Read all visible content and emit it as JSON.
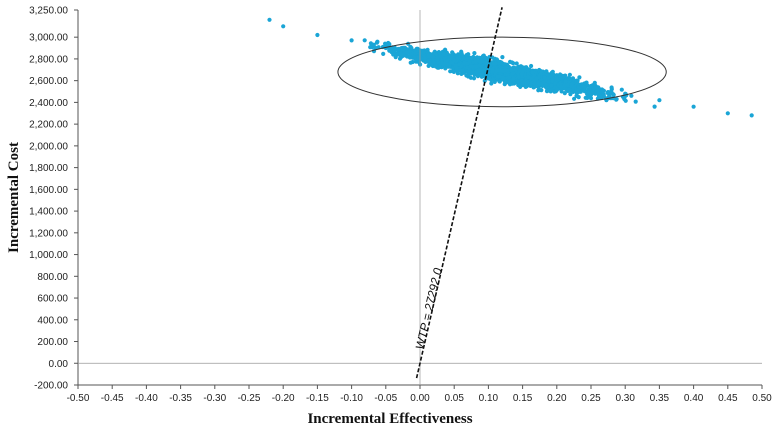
{
  "chart_data": {
    "type": "scatter",
    "xlabel": "Incremental Effectiveness",
    "ylabel": "Incremental Cost",
    "xlim": [
      -0.5,
      0.5
    ],
    "ylim": [
      -200,
      3250
    ],
    "x_ticks": [
      "-0.50",
      "-0.45",
      "-0.40",
      "-0.35",
      "-0.30",
      "-0.25",
      "-0.20",
      "-0.15",
      "-0.10",
      "-0.05",
      "0.00",
      "0.05",
      "0.10",
      "0.15",
      "0.20",
      "0.25",
      "0.30",
      "0.35",
      "0.40",
      "0.45",
      "0.50"
    ],
    "y_ticks": [
      "-200.00",
      "0.00",
      "200.00",
      "400.00",
      "600.00",
      "800.00",
      "1,000.00",
      "1,200.00",
      "1,400.00",
      "1,600.00",
      "1,800.00",
      "2,000.00",
      "2,200.00",
      "2,400.00",
      "2,600.00",
      "2,800.00",
      "3,000.00",
      "3,250.00"
    ],
    "y_tick_values": [
      -200,
      0,
      200,
      400,
      600,
      800,
      1000,
      1200,
      1400,
      1600,
      1800,
      2000,
      2200,
      2400,
      2600,
      2800,
      3000,
      3250
    ],
    "point_color": "#1aa5d6",
    "points_trend": {
      "x_range": [
        -0.22,
        0.485
      ],
      "line": [
        [
          -0.22,
          3100
        ],
        [
          0.485,
          2230
        ]
      ],
      "sample_points": [
        [
          -0.22,
          3160
        ],
        [
          -0.2,
          3100
        ],
        [
          -0.15,
          3020
        ],
        [
          -0.1,
          2970
        ],
        [
          -0.05,
          2900
        ],
        [
          0.0,
          2850
        ],
        [
          0.05,
          2790
        ],
        [
          0.1,
          2740
        ],
        [
          0.15,
          2680
        ],
        [
          0.2,
          2620
        ],
        [
          0.25,
          2550
        ],
        [
          0.3,
          2480
        ],
        [
          0.35,
          2420
        ],
        [
          0.4,
          2360
        ],
        [
          0.45,
          2300
        ],
        [
          0.485,
          2280
        ]
      ]
    },
    "confidence_ellipse": {
      "center": [
        0.12,
        2680
      ],
      "x_semi": 0.24,
      "y_semi": 320
    },
    "wtp_line": {
      "label": "WTP = 27292.0",
      "slope": 27292.0,
      "x_range": [
        -0.005,
        0.12
      ]
    },
    "grid": false
  }
}
